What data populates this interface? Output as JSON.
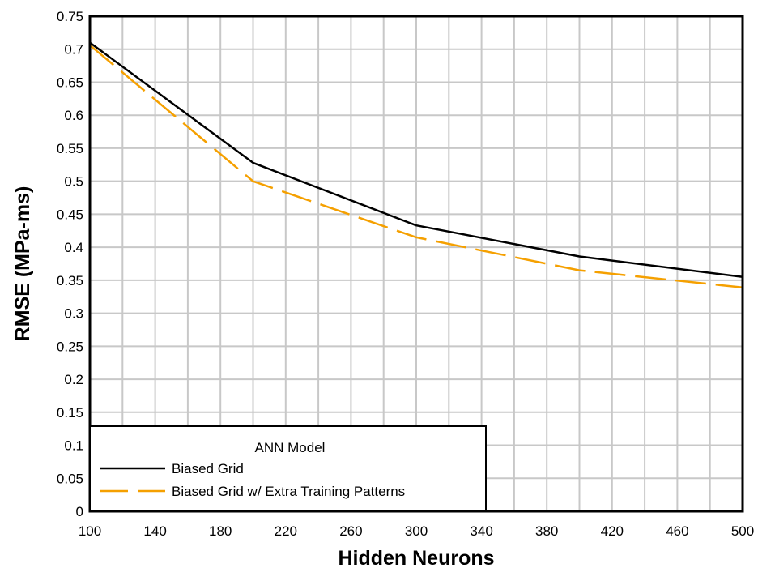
{
  "chart_data": {
    "type": "line",
    "title": "",
    "xlabel": "Hidden Neurons",
    "ylabel": "RMSE (MPa-ms)",
    "xlim": [
      100,
      500
    ],
    "ylim": [
      0,
      0.75
    ],
    "x_ticks": [
      100,
      140,
      180,
      220,
      260,
      300,
      340,
      380,
      420,
      460,
      500
    ],
    "x_tick_labels": [
      "100",
      "140",
      "180",
      "220",
      "260",
      "300",
      "340",
      "380",
      "420",
      "460",
      "500"
    ],
    "y_ticks": [
      0,
      0.05,
      0.1,
      0.15,
      0.2,
      0.25,
      0.3,
      0.35,
      0.4,
      0.45,
      0.5,
      0.55,
      0.6,
      0.65,
      0.7,
      0.75
    ],
    "y_tick_labels": [
      "0",
      "0.05",
      "0.1",
      "0.15",
      "0.2",
      "0.25",
      "0.3",
      "0.35",
      "0.4",
      "0.45",
      "0.5",
      "0.55",
      "0.6",
      "0.65",
      "0.7",
      "0.75"
    ],
    "x_minor_step": 20,
    "grid": true,
    "legend": {
      "title": "ANN Model",
      "placement": "bottom-left"
    },
    "series": [
      {
        "name": "Biased Grid",
        "color": "#000000",
        "style": "solid",
        "x": [
          100,
          200,
          300,
          400,
          500
        ],
        "y": [
          0.71,
          0.528,
          0.433,
          0.386,
          0.355
        ]
      },
      {
        "name": "Biased Grid w/ Extra Training Patterns",
        "color": "#f5a000",
        "style": "dashed",
        "x": [
          100,
          200,
          300,
          400,
          500
        ],
        "y": [
          0.706,
          0.5,
          0.415,
          0.365,
          0.339
        ]
      }
    ]
  }
}
